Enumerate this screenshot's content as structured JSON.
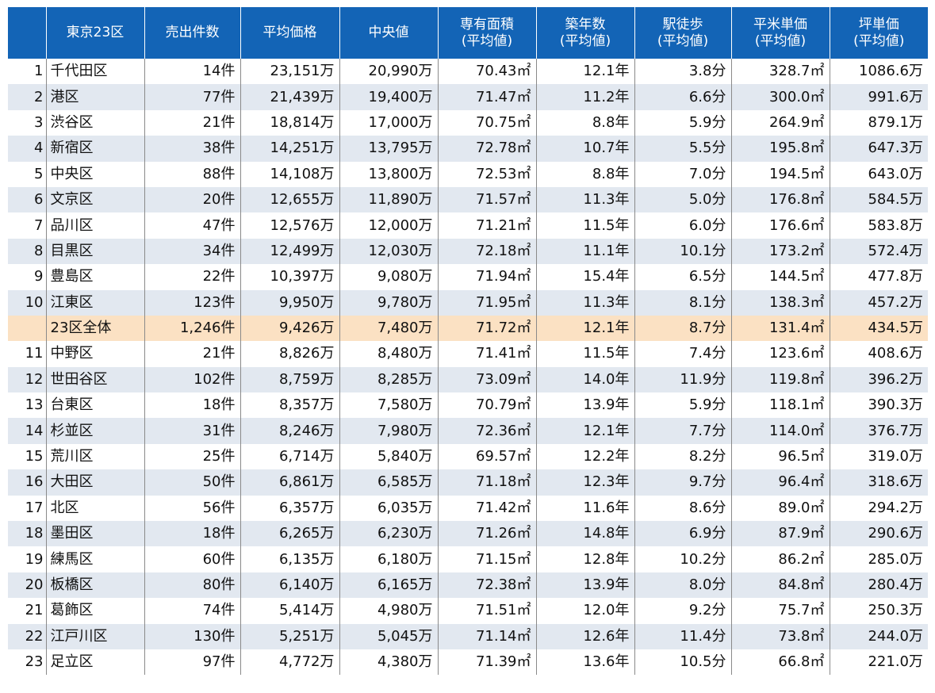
{
  "table": {
    "headers": [
      [
        ""
      ],
      [
        "東京23区"
      ],
      [
        "売出件数"
      ],
      [
        "平均価格"
      ],
      [
        "中央値"
      ],
      [
        "専有面積",
        "(平均値)"
      ],
      [
        "築年数",
        "(平均値)"
      ],
      [
        "駅徒歩",
        "(平均値)"
      ],
      [
        "平米単価",
        "(平均値)"
      ],
      [
        "坪単価",
        "(平均値)"
      ]
    ],
    "rows": [
      {
        "rank": "1",
        "ward": "千代田区",
        "count": "14件",
        "avg_price": "23,151万",
        "median": "20,990万",
        "area": "70.43㎡",
        "age": "12.1年",
        "walk": "3.8分",
        "sqm_price": "328.7㎡",
        "tsubo_price": "1086.6万"
      },
      {
        "rank": "2",
        "ward": "港区",
        "count": "77件",
        "avg_price": "21,439万",
        "median": "19,400万",
        "area": "71.47㎡",
        "age": "11.2年",
        "walk": "6.6分",
        "sqm_price": "300.0㎡",
        "tsubo_price": "991.6万"
      },
      {
        "rank": "3",
        "ward": "渋谷区",
        "count": "21件",
        "avg_price": "18,814万",
        "median": "17,000万",
        "area": "70.75㎡",
        "age": "8.8年",
        "walk": "5.9分",
        "sqm_price": "264.9㎡",
        "tsubo_price": "879.1万"
      },
      {
        "rank": "4",
        "ward": "新宿区",
        "count": "38件",
        "avg_price": "14,251万",
        "median": "13,795万",
        "area": "72.78㎡",
        "age": "10.7年",
        "walk": "5.5分",
        "sqm_price": "195.8㎡",
        "tsubo_price": "647.3万"
      },
      {
        "rank": "5",
        "ward": "中央区",
        "count": "88件",
        "avg_price": "14,108万",
        "median": "13,800万",
        "area": "72.53㎡",
        "age": "8.8年",
        "walk": "7.0分",
        "sqm_price": "194.5㎡",
        "tsubo_price": "643.0万"
      },
      {
        "rank": "6",
        "ward": "文京区",
        "count": "20件",
        "avg_price": "12,655万",
        "median": "11,890万",
        "area": "71.57㎡",
        "age": "11.3年",
        "walk": "5.0分",
        "sqm_price": "176.8㎡",
        "tsubo_price": "584.5万"
      },
      {
        "rank": "7",
        "ward": "品川区",
        "count": "47件",
        "avg_price": "12,576万",
        "median": "12,000万",
        "area": "71.21㎡",
        "age": "11.5年",
        "walk": "6.0分",
        "sqm_price": "176.6㎡",
        "tsubo_price": "583.8万"
      },
      {
        "rank": "8",
        "ward": "目黒区",
        "count": "34件",
        "avg_price": "12,499万",
        "median": "12,030万",
        "area": "72.18㎡",
        "age": "11.1年",
        "walk": "10.1分",
        "sqm_price": "173.2㎡",
        "tsubo_price": "572.4万"
      },
      {
        "rank": "9",
        "ward": "豊島区",
        "count": "22件",
        "avg_price": "10,397万",
        "median": "9,080万",
        "area": "71.94㎡",
        "age": "15.4年",
        "walk": "6.5分",
        "sqm_price": "144.5㎡",
        "tsubo_price": "477.8万"
      },
      {
        "rank": "10",
        "ward": "江東区",
        "count": "123件",
        "avg_price": "9,950万",
        "median": "9,780万",
        "area": "71.95㎡",
        "age": "11.3年",
        "walk": "8.1分",
        "sqm_price": "138.3㎡",
        "tsubo_price": "457.2万"
      },
      {
        "rank": "",
        "ward": "23区全体",
        "count": "1,246件",
        "avg_price": "9,426万",
        "median": "7,480万",
        "area": "71.72㎡",
        "age": "12.1年",
        "walk": "8.7分",
        "sqm_price": "131.4㎡",
        "tsubo_price": "434.5万",
        "total": true
      },
      {
        "rank": "11",
        "ward": "中野区",
        "count": "21件",
        "avg_price": "8,826万",
        "median": "8,480万",
        "area": "71.41㎡",
        "age": "11.5年",
        "walk": "7.4分",
        "sqm_price": "123.6㎡",
        "tsubo_price": "408.6万"
      },
      {
        "rank": "12",
        "ward": "世田谷区",
        "count": "102件",
        "avg_price": "8,759万",
        "median": "8,285万",
        "area": "73.09㎡",
        "age": "14.0年",
        "walk": "11.9分",
        "sqm_price": "119.8㎡",
        "tsubo_price": "396.2万"
      },
      {
        "rank": "13",
        "ward": "台東区",
        "count": "18件",
        "avg_price": "8,357万",
        "median": "7,580万",
        "area": "70.79㎡",
        "age": "13.9年",
        "walk": "5.9分",
        "sqm_price": "118.1㎡",
        "tsubo_price": "390.3万"
      },
      {
        "rank": "14",
        "ward": "杉並区",
        "count": "31件",
        "avg_price": "8,246万",
        "median": "7,980万",
        "area": "72.36㎡",
        "age": "12.1年",
        "walk": "7.7分",
        "sqm_price": "114.0㎡",
        "tsubo_price": "376.7万"
      },
      {
        "rank": "15",
        "ward": "荒川区",
        "count": "25件",
        "avg_price": "6,714万",
        "median": "5,840万",
        "area": "69.57㎡",
        "age": "12.2年",
        "walk": "8.2分",
        "sqm_price": "96.5㎡",
        "tsubo_price": "319.0万"
      },
      {
        "rank": "16",
        "ward": "大田区",
        "count": "50件",
        "avg_price": "6,861万",
        "median": "6,585万",
        "area": "71.18㎡",
        "age": "12.3年",
        "walk": "9.7分",
        "sqm_price": "96.4㎡",
        "tsubo_price": "318.6万"
      },
      {
        "rank": "17",
        "ward": "北区",
        "count": "56件",
        "avg_price": "6,357万",
        "median": "6,035万",
        "area": "71.42㎡",
        "age": "11.6年",
        "walk": "8.6分",
        "sqm_price": "89.0㎡",
        "tsubo_price": "294.2万"
      },
      {
        "rank": "18",
        "ward": "墨田区",
        "count": "18件",
        "avg_price": "6,265万",
        "median": "6,230万",
        "area": "71.26㎡",
        "age": "14.8年",
        "walk": "6.9分",
        "sqm_price": "87.9㎡",
        "tsubo_price": "290.6万"
      },
      {
        "rank": "19",
        "ward": "練馬区",
        "count": "60件",
        "avg_price": "6,135万",
        "median": "6,180万",
        "area": "71.15㎡",
        "age": "12.8年",
        "walk": "10.2分",
        "sqm_price": "86.2㎡",
        "tsubo_price": "285.0万"
      },
      {
        "rank": "20",
        "ward": "板橋区",
        "count": "80件",
        "avg_price": "6,140万",
        "median": "6,165万",
        "area": "72.38㎡",
        "age": "13.9年",
        "walk": "8.0分",
        "sqm_price": "84.8㎡",
        "tsubo_price": "280.4万"
      },
      {
        "rank": "21",
        "ward": "葛飾区",
        "count": "74件",
        "avg_price": "5,414万",
        "median": "4,980万",
        "area": "71.51㎡",
        "age": "12.0年",
        "walk": "9.2分",
        "sqm_price": "75.7㎡",
        "tsubo_price": "250.3万"
      },
      {
        "rank": "22",
        "ward": "江戸川区",
        "count": "130件",
        "avg_price": "5,251万",
        "median": "5,045万",
        "area": "71.14㎡",
        "age": "12.6年",
        "walk": "11.4分",
        "sqm_price": "73.8㎡",
        "tsubo_price": "244.0万"
      },
      {
        "rank": "23",
        "ward": "足立区",
        "count": "97件",
        "avg_price": "4,772万",
        "median": "4,380万",
        "area": "71.39㎡",
        "age": "13.6年",
        "walk": "10.5分",
        "sqm_price": "66.8㎡",
        "tsubo_price": "221.0万"
      }
    ]
  },
  "colors": {
    "header_bg": "#1364b6",
    "header_text": "#ffffff",
    "stripe_bg": "#e2e8f0",
    "total_row_bg": "#fbe1c3"
  }
}
